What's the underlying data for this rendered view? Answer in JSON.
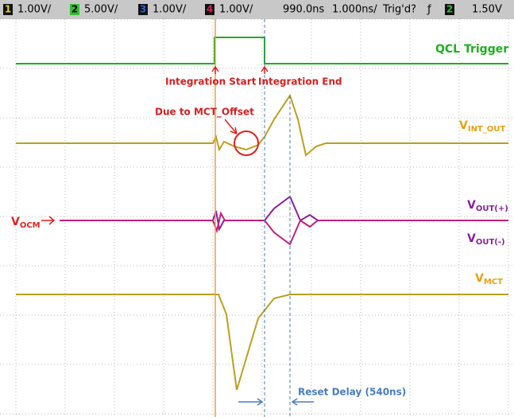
{
  "header": {
    "channels": [
      {
        "number": "1",
        "scale": "1.00V/"
      },
      {
        "number": "2",
        "scale": "5.00V/"
      },
      {
        "number": "3",
        "scale": "1.00V/"
      },
      {
        "number": "4",
        "scale": "1.00V/"
      }
    ],
    "delay": "990.0ns",
    "timebase": "1.000ns/",
    "status": "Trig'd?",
    "trigger_slope": "ƒ",
    "trigger_channel": "2",
    "trigger_level": "1.50V"
  },
  "annotations": {
    "qcl_trigger": "QCL Trigger",
    "integration_start": "Integration Start",
    "integration_end": "Integration End",
    "mct_offset": "Due to MCT_Offset",
    "reset_delay": "Reset Delay (540ns)"
  },
  "signals": [
    {
      "symbol": "V",
      "subscript": "INT_OUT"
    },
    {
      "symbol": "V",
      "subscript": "OUT(+)"
    },
    {
      "symbol": "V",
      "subscript": "OUT(-)"
    },
    {
      "symbol": "V",
      "subscript": "OCM"
    },
    {
      "symbol": "V",
      "subscript": "MCT"
    }
  ]
}
